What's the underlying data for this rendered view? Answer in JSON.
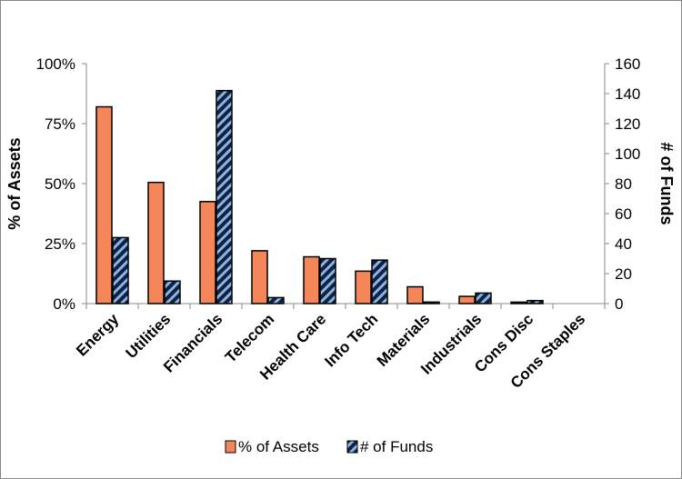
{
  "chart_data": {
    "type": "bar",
    "categories": [
      "Energy",
      "Utilities",
      "Financials",
      "Telecom",
      "Health Care",
      "Info Tech",
      "Materials",
      "Industrials",
      "Cons Disc",
      "Cons Staples"
    ],
    "series": [
      {
        "name": "% of Assets",
        "axis": "left",
        "color": "#F4865A",
        "values": [
          82,
          50.5,
          42.5,
          22,
          19.5,
          13.5,
          7,
          3,
          0.6,
          0
        ]
      },
      {
        "name": "# of Funds",
        "axis": "right",
        "color": "#0E2244",
        "hatch_color": "#8DB3E2",
        "values": [
          44,
          15,
          142,
          4,
          30,
          29,
          1,
          7,
          2,
          0
        ]
      }
    ],
    "y_left": {
      "label": "% of Assets",
      "lim": [
        0,
        100
      ],
      "ticks": [
        0,
        25,
        50,
        75,
        100
      ],
      "tick_labels": [
        "0%",
        "25%",
        "50%",
        "75%",
        "100%"
      ]
    },
    "y_right": {
      "label": "# of Funds",
      "lim": [
        0,
        160
      ],
      "ticks": [
        0,
        20,
        40,
        60,
        80,
        100,
        120,
        140,
        160
      ],
      "tick_labels": [
        "0",
        "20",
        "40",
        "60",
        "80",
        "100",
        "120",
        "140",
        "160"
      ]
    },
    "grid": false,
    "legend": "bottom"
  }
}
